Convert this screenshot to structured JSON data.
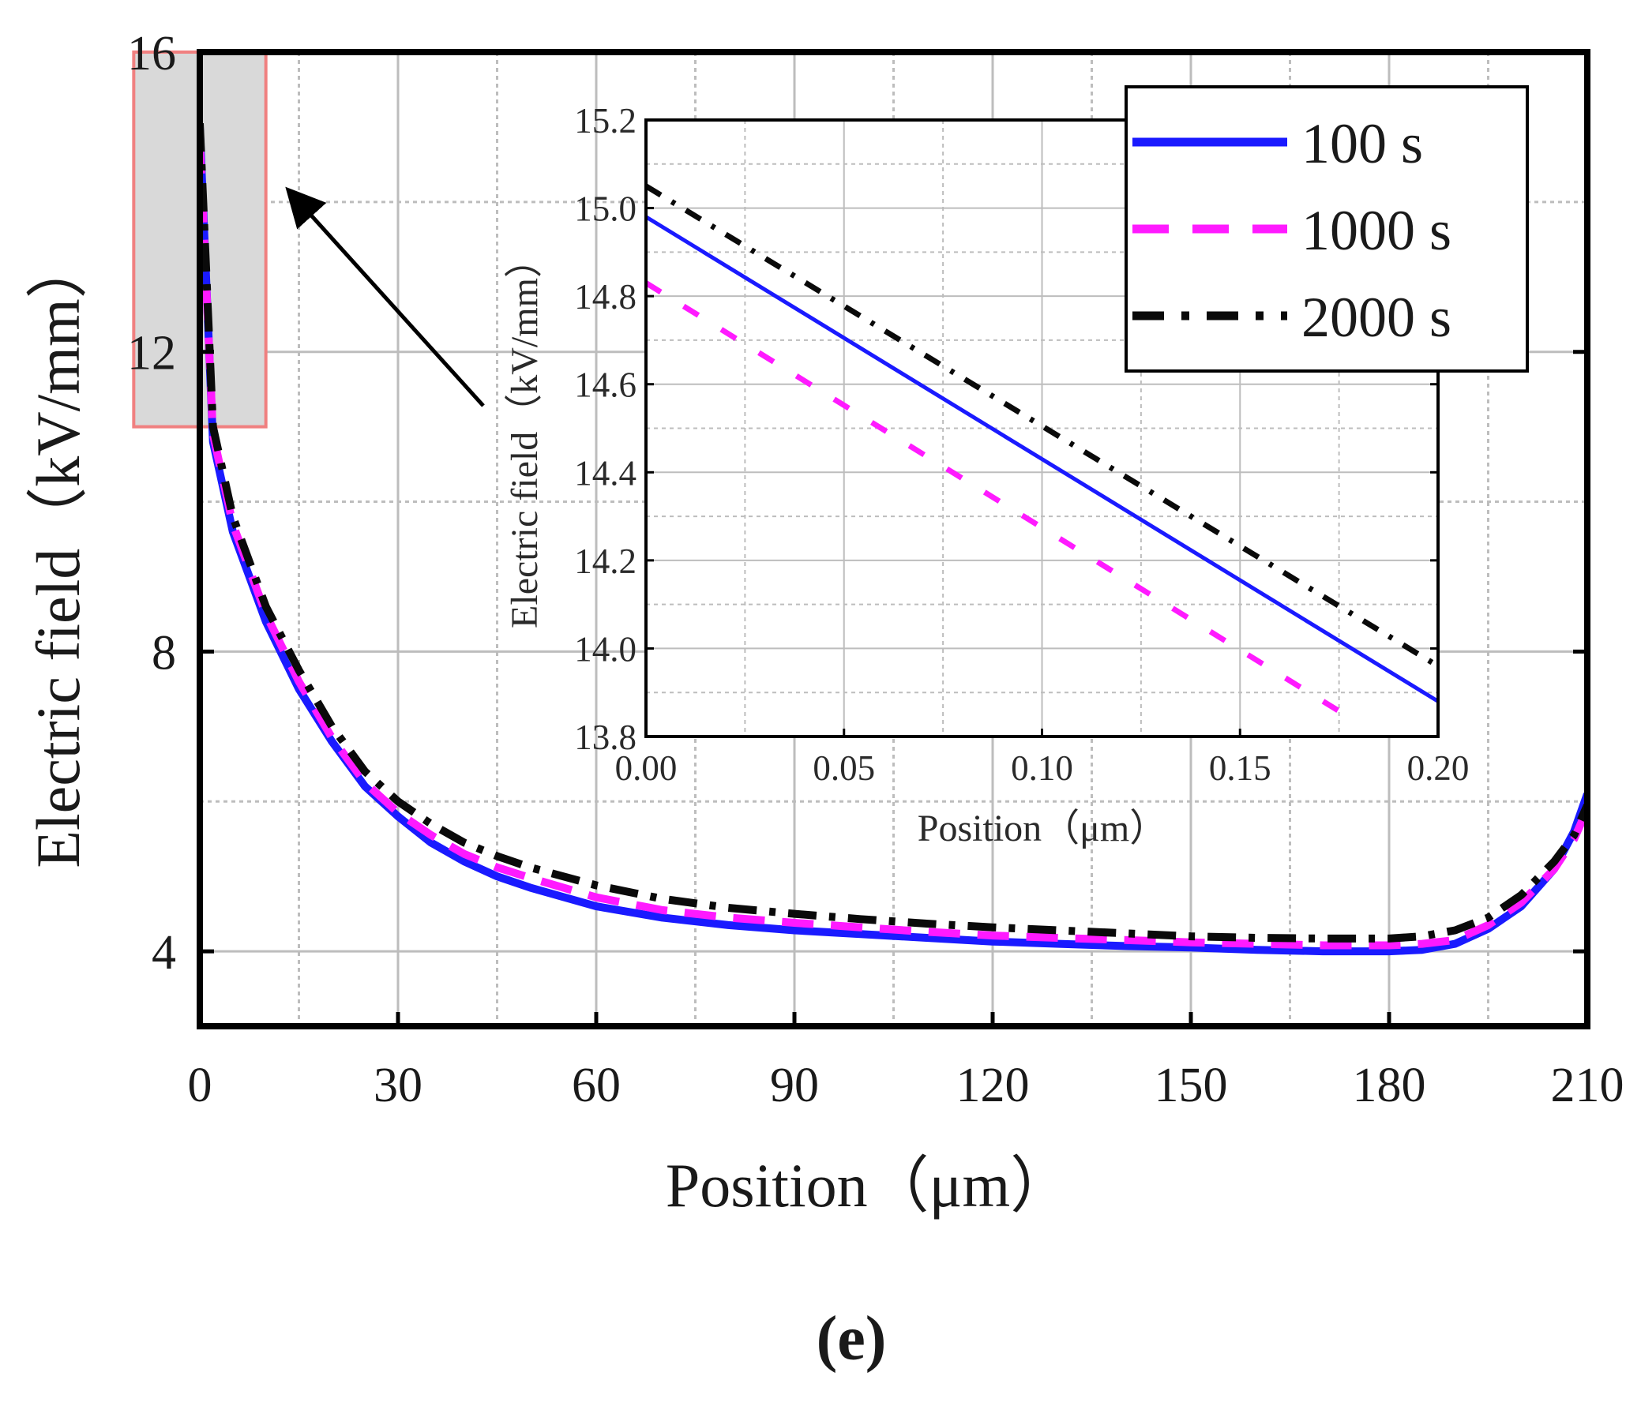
{
  "panel_label": "(e)",
  "colors": {
    "series_100": "#1a1aff",
    "series_1000": "#ff1aff",
    "series_2000": "#0a0a0a",
    "grid": "#bdbdbd",
    "highlight_fill": "#d9d9d9",
    "highlight_border": "#f08080"
  },
  "chart_data": [
    {
      "type": "line",
      "id": "main",
      "xlabel": "Position（μm）",
      "ylabel": "Electric field（kV/mm）",
      "xlim": [
        0,
        210
      ],
      "ylim": [
        3,
        16
      ],
      "xticks": [
        0,
        30,
        60,
        90,
        120,
        150,
        180,
        210
      ],
      "xtick_labels": [
        "0",
        "30",
        "60",
        "90",
        "120",
        "150",
        "180",
        "210"
      ],
      "yticks": [
        4,
        8,
        12,
        16
      ],
      "ytick_labels": [
        "4",
        "8",
        "12",
        "16"
      ],
      "grid": true,
      "legend": {
        "placement": "top-right",
        "entries": [
          "100 s",
          "1000 s",
          "2000 s"
        ]
      },
      "zoom_region": {
        "x": [
          -10,
          10
        ],
        "y": [
          11,
          16
        ]
      },
      "series": [
        {
          "name": "100 s",
          "style": "solid",
          "x": [
            0,
            2,
            5,
            10,
            15,
            20,
            25,
            30,
            35,
            40,
            45,
            50,
            60,
            70,
            80,
            90,
            100,
            110,
            120,
            130,
            140,
            150,
            160,
            170,
            180,
            185,
            190,
            195,
            200,
            205,
            208,
            210
          ],
          "y": [
            15.0,
            10.8,
            9.6,
            8.4,
            7.5,
            6.8,
            6.2,
            5.8,
            5.45,
            5.2,
            5.0,
            4.85,
            4.6,
            4.45,
            4.35,
            4.28,
            4.23,
            4.18,
            4.13,
            4.1,
            4.07,
            4.05,
            4.02,
            4.0,
            4.0,
            4.02,
            4.1,
            4.3,
            4.6,
            5.1,
            5.6,
            6.1
          ]
        },
        {
          "name": "1000 s",
          "style": "dashed",
          "x": [
            0,
            2,
            5,
            10,
            15,
            20,
            25,
            30,
            35,
            40,
            45,
            50,
            60,
            70,
            80,
            90,
            100,
            110,
            120,
            130,
            140,
            150,
            160,
            170,
            180,
            185,
            190,
            195,
            200,
            205,
            208,
            210
          ],
          "y": [
            14.8,
            10.9,
            9.7,
            8.5,
            7.6,
            6.85,
            6.25,
            5.85,
            5.55,
            5.3,
            5.12,
            4.98,
            4.72,
            4.55,
            4.45,
            4.38,
            4.32,
            4.26,
            4.21,
            4.18,
            4.15,
            4.12,
            4.1,
            4.08,
            4.08,
            4.1,
            4.15,
            4.35,
            4.65,
            5.1,
            5.5,
            5.9
          ]
        },
        {
          "name": "2000 s",
          "style": "dash-dot",
          "x": [
            0,
            2,
            5,
            10,
            15,
            20,
            25,
            30,
            35,
            40,
            45,
            50,
            60,
            70,
            80,
            90,
            100,
            110,
            120,
            130,
            140,
            150,
            160,
            170,
            180,
            185,
            190,
            195,
            200,
            205,
            208,
            210
          ],
          "y": [
            15.05,
            11.0,
            9.8,
            8.6,
            7.75,
            7.0,
            6.4,
            6.0,
            5.7,
            5.45,
            5.27,
            5.12,
            4.88,
            4.7,
            4.58,
            4.5,
            4.43,
            4.37,
            4.32,
            4.28,
            4.24,
            4.2,
            4.18,
            4.17,
            4.17,
            4.2,
            4.28,
            4.45,
            4.75,
            5.2,
            5.55,
            5.95
          ]
        }
      ]
    },
    {
      "type": "line",
      "id": "inset",
      "xlabel": "Position（μm）",
      "ylabel": "Electric field（kV/mm）",
      "xlim": [
        0,
        0.2
      ],
      "ylim": [
        13.8,
        15.2
      ],
      "xticks": [
        0,
        0.05,
        0.1,
        0.15,
        0.2
      ],
      "xtick_labels": [
        "0.00",
        "0.05",
        "0.10",
        "0.15",
        "0.20"
      ],
      "yticks": [
        13.8,
        14.0,
        14.2,
        14.4,
        14.6,
        14.8,
        15.0,
        15.2
      ],
      "ytick_labels": [
        "13.8",
        "14.0",
        "14.2",
        "14.4",
        "14.6",
        "14.8",
        "15.0",
        "15.2"
      ],
      "grid": true,
      "series": [
        {
          "name": "100 s",
          "style": "solid",
          "x": [
            0,
            0.2
          ],
          "y": [
            14.98,
            13.88
          ]
        },
        {
          "name": "1000 s",
          "style": "dashed",
          "x": [
            0,
            0.18
          ],
          "y": [
            14.83,
            13.83
          ]
        },
        {
          "name": "2000 s",
          "style": "dash-dot",
          "x": [
            0,
            0.2
          ],
          "y": [
            15.05,
            13.96
          ]
        }
      ]
    }
  ]
}
